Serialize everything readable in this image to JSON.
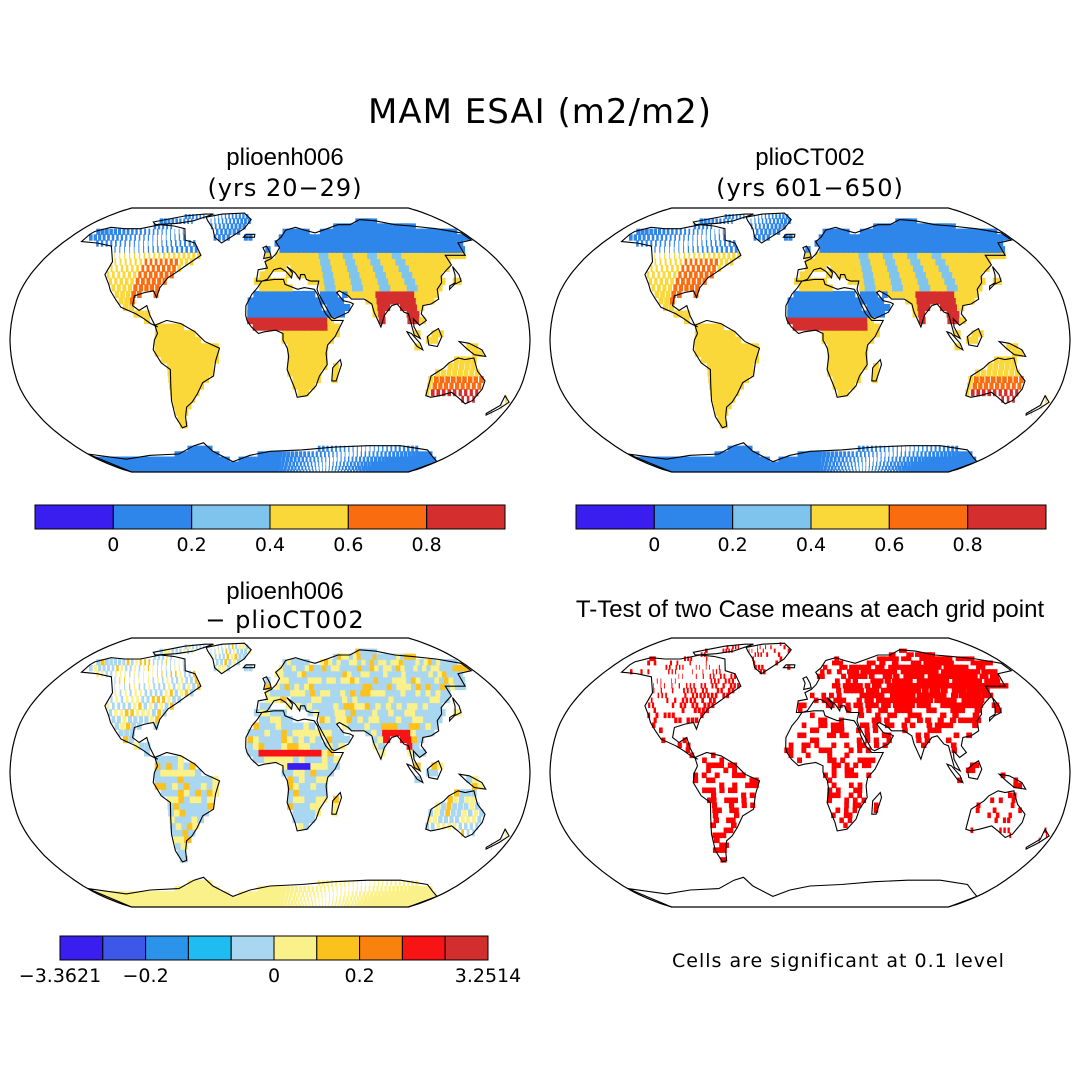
{
  "figure": {
    "title": "MAM ESAI (m2/m2)",
    "footnote": "Cells are significant at 0.1 level"
  },
  "panels": [
    {
      "title": "plioenh006",
      "subtitle": "(yrs 20−29)"
    },
    {
      "title": "plioCT002",
      "subtitle": "(yrs 601−650)"
    },
    {
      "title": "plioenh006",
      "subtitle": "− plioCT002"
    },
    {
      "title": "T-Test of two Case means at each grid point",
      "subtitle": ""
    }
  ],
  "chart_data": [
    {
      "type": "map",
      "panel": "plioenh006 (yrs 20-29)",
      "legend": {
        "bins": [
          {
            "color": "#3a1ef0"
          },
          {
            "color": "#2f86ea"
          },
          {
            "color": "#7fc4ec"
          },
          {
            "color": "#fad83a"
          },
          {
            "color": "#f96d10"
          },
          {
            "color": "#d42e2e"
          }
        ],
        "tick_labels": [
          "0",
          "0.2",
          "0.4",
          "0.6",
          "0.8"
        ]
      }
    },
    {
      "type": "map",
      "panel": "plioCT002 (yrs 601-650)",
      "legend": {
        "bins": [
          {
            "color": "#3a1ef0"
          },
          {
            "color": "#2f86ea"
          },
          {
            "color": "#7fc4ec"
          },
          {
            "color": "#fad83a"
          },
          {
            "color": "#f96d10"
          },
          {
            "color": "#d42e2e"
          }
        ],
        "tick_labels": [
          "0",
          "0.2",
          "0.4",
          "0.6",
          "0.8"
        ]
      }
    },
    {
      "type": "map",
      "panel": "plioenh006 - plioCT002",
      "legend": {
        "bins": [
          {
            "color": "#3a1ef0"
          },
          {
            "color": "#3d57e8"
          },
          {
            "color": "#2c93ea"
          },
          {
            "color": "#1ebcf0"
          },
          {
            "color": "#a9d6f0"
          },
          {
            "color": "#fbf18a"
          },
          {
            "color": "#fbc21e"
          },
          {
            "color": "#f9820e"
          },
          {
            "color": "#f81414"
          },
          {
            "color": "#d22e2e"
          }
        ],
        "tick_labels": [
          "-3.3621",
          "-0.2",
          "0",
          "0.2",
          "3.2514"
        ],
        "min": -3.3621,
        "max": 3.2514
      }
    },
    {
      "type": "map",
      "panel": "T-Test of two Case means at each grid point",
      "significance_level": 0.1,
      "marker_color": "#ff0000"
    }
  ]
}
